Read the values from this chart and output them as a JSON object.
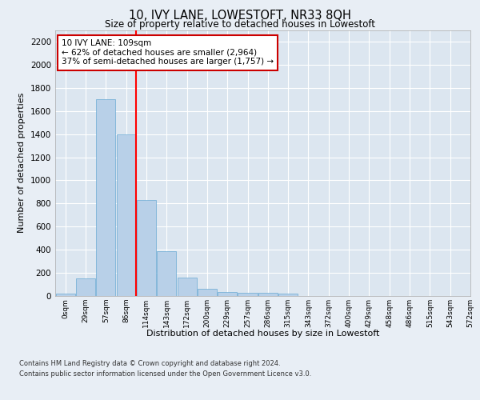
{
  "title": "10, IVY LANE, LOWESTOFT, NR33 8QH",
  "subtitle": "Size of property relative to detached houses in Lowestoft",
  "xlabel": "Distribution of detached houses by size in Lowestoft",
  "ylabel": "Number of detached properties",
  "bar_values": [
    20,
    155,
    1700,
    1400,
    830,
    385,
    160,
    65,
    35,
    30,
    30,
    20,
    0,
    0,
    0,
    0,
    0,
    0,
    0
  ],
  "bar_color": "#b8d0e8",
  "bar_edge_color": "#6aaad4",
  "x_labels": [
    "0sqm",
    "29sqm",
    "57sqm",
    "86sqm",
    "114sqm",
    "143sqm",
    "172sqm",
    "200sqm",
    "229sqm",
    "257sqm",
    "286sqm",
    "315sqm",
    "343sqm",
    "372sqm",
    "400sqm",
    "429sqm",
    "458sqm",
    "486sqm",
    "515sqm",
    "543sqm",
    "572sqm"
  ],
  "ylim": [
    0,
    2300
  ],
  "yticks": [
    0,
    200,
    400,
    600,
    800,
    1000,
    1200,
    1400,
    1600,
    1800,
    2000,
    2200
  ],
  "red_line_x": 3.5,
  "annotation_text": "10 IVY LANE: 109sqm\n← 62% of detached houses are smaller (2,964)\n37% of semi-detached houses are larger (1,757) →",
  "annotation_box_color": "#ffffff",
  "annotation_box_edge": "#cc0000",
  "bg_color": "#e8eef5",
  "plot_bg_color": "#dce6f0",
  "grid_color": "#ffffff",
  "footer_line1": "Contains HM Land Registry data © Crown copyright and database right 2024.",
  "footer_line2": "Contains public sector information licensed under the Open Government Licence v3.0."
}
